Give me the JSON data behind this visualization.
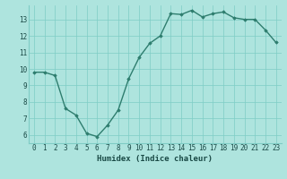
{
  "x": [
    0,
    1,
    2,
    3,
    4,
    5,
    6,
    7,
    8,
    9,
    10,
    11,
    12,
    13,
    14,
    15,
    16,
    17,
    18,
    19,
    20,
    21,
    22,
    23
  ],
  "y": [
    9.8,
    9.8,
    9.6,
    7.6,
    7.2,
    6.1,
    5.9,
    6.6,
    7.5,
    9.4,
    10.7,
    11.55,
    12.0,
    13.35,
    13.3,
    13.55,
    13.15,
    13.35,
    13.45,
    13.1,
    13.0,
    13.0,
    12.35,
    11.6
  ],
  "line_color": "#2e7d6e",
  "marker": "D",
  "marker_size": 1.8,
  "bg_color": "#aee4de",
  "grid_color": "#7eccc5",
  "xlabel": "Humidex (Indice chaleur)",
  "ylim": [
    5.5,
    13.85
  ],
  "xlim": [
    -0.5,
    23.5
  ],
  "yticks": [
    6,
    7,
    8,
    9,
    10,
    11,
    12,
    13
  ],
  "xticks": [
    0,
    1,
    2,
    3,
    4,
    5,
    6,
    7,
    8,
    9,
    10,
    11,
    12,
    13,
    14,
    15,
    16,
    17,
    18,
    19,
    20,
    21,
    22,
    23
  ],
  "font_color": "#1a4a46",
  "tick_fontsize": 5.5,
  "xlabel_fontsize": 6.5,
  "line_width": 1.0
}
